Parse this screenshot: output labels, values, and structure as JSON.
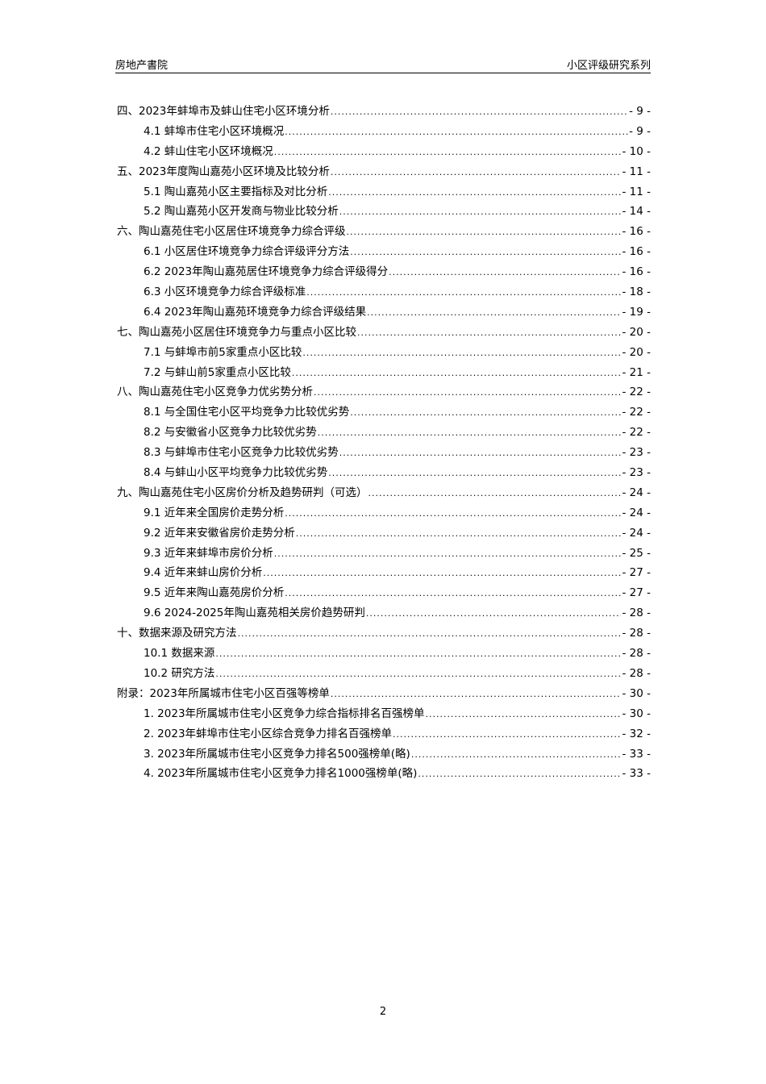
{
  "header": {
    "left": "房地产書院",
    "right": "小区评级研究系列"
  },
  "toc": [
    {
      "level": 1,
      "title": "四、2023年蚌埠市及蚌山住宅小区环境分析",
      "page": "- 9 -"
    },
    {
      "level": 2,
      "title": "4.1 蚌埠市住宅小区环境概况",
      "page": "- 9 -"
    },
    {
      "level": 2,
      "title": "4.2 蚌山住宅小区环境概况",
      "page": "- 10 -"
    },
    {
      "level": 1,
      "title": "五、2023年度陶山嘉苑小区环境及比较分析",
      "page": "- 11 -"
    },
    {
      "level": 2,
      "title": "5.1 陶山嘉苑小区主要指标及对比分析",
      "page": "- 11 -"
    },
    {
      "level": 2,
      "title": "5.2 陶山嘉苑小区开发商与物业比较分析",
      "page": "- 14 -"
    },
    {
      "level": 1,
      "title": "六、陶山嘉苑住宅小区居住环境竞争力综合评级",
      "page": "- 16 -"
    },
    {
      "level": 2,
      "title": "6.1 小区居住环境竞争力综合评级评分方法",
      "page": "- 16 -"
    },
    {
      "level": 2,
      "title": "6.2 2023年陶山嘉苑居住环境竞争力综合评级得分",
      "page": "- 16 -"
    },
    {
      "level": 2,
      "title": "6.3 小区环境竞争力综合评级标准",
      "page": "- 18 -"
    },
    {
      "level": 2,
      "title": "6.4 2023年陶山嘉苑环境竞争力综合评级结果",
      "page": "- 19 -"
    },
    {
      "level": 1,
      "title": "七、陶山嘉苑小区居住环境竞争力与重点小区比较",
      "page": "- 20 -"
    },
    {
      "level": 2,
      "title": "7.1 与蚌埠市前5家重点小区比较",
      "page": "- 20 -"
    },
    {
      "level": 2,
      "title": "7.2 与蚌山前5家重点小区比较",
      "page": "- 21 -"
    },
    {
      "level": 1,
      "title": "八、陶山嘉苑住宅小区竞争力优劣势分析",
      "page": "- 22 -"
    },
    {
      "level": 2,
      "title": "8.1 与全国住宅小区平均竞争力比较优劣势",
      "page": "- 22 -"
    },
    {
      "level": 2,
      "title": "8.2 与安徽省小区竞争力比较优劣势",
      "page": "- 22 -"
    },
    {
      "level": 2,
      "title": "8.3 与蚌埠市住宅小区竞争力比较优劣势",
      "page": "- 23 -"
    },
    {
      "level": 2,
      "title": "8.4 与蚌山小区平均竞争力比较优劣势",
      "page": "- 23 -"
    },
    {
      "level": 1,
      "title": "九、陶山嘉苑住宅小区房价分析及趋势研判（可选）",
      "page": "- 24 -"
    },
    {
      "level": 2,
      "title": "9.1 近年来全国房价走势分析",
      "page": "- 24 -"
    },
    {
      "level": 2,
      "title": "9.2 近年来安徽省房价走势分析",
      "page": "- 24 -"
    },
    {
      "level": 2,
      "title": "9.3 近年来蚌埠市房价分析",
      "page": "- 25 -"
    },
    {
      "level": 2,
      "title": "9.4 近年来蚌山房价分析",
      "page": "- 27 -"
    },
    {
      "level": 2,
      "title": "9.5 近年来陶山嘉苑房价分析",
      "page": "- 27 -"
    },
    {
      "level": 2,
      "title": "9.6 2024-2025年陶山嘉苑相关房价趋势研判",
      "page": "- 28 -"
    },
    {
      "level": 1,
      "title": "十、数据来源及研究方法",
      "page": "- 28 -"
    },
    {
      "level": 2,
      "title": "10.1 数据来源",
      "page": "- 28 -"
    },
    {
      "level": 2,
      "title": "10.2 研究方法",
      "page": "- 28 -"
    },
    {
      "level": 1,
      "title": "附录：2023年所属城市住宅小区百强等榜单",
      "page": "- 30 -"
    },
    {
      "level": 2,
      "title": "1. 2023年所属城市住宅小区竞争力综合指标排名百强榜单",
      "page": "- 30 -"
    },
    {
      "level": 2,
      "title": "2. 2023年蚌埠市住宅小区综合竞争力排名百强榜单",
      "page": "- 32 -"
    },
    {
      "level": 2,
      "title": "3. 2023年所属城市住宅小区竞争力排名500强榜单(略)",
      "page": "- 33 -"
    },
    {
      "level": 2,
      "title": "4. 2023年所属城市住宅小区竞争力排名1000强榜单(略)",
      "page": "- 33 -"
    }
  ],
  "page_number": "2"
}
